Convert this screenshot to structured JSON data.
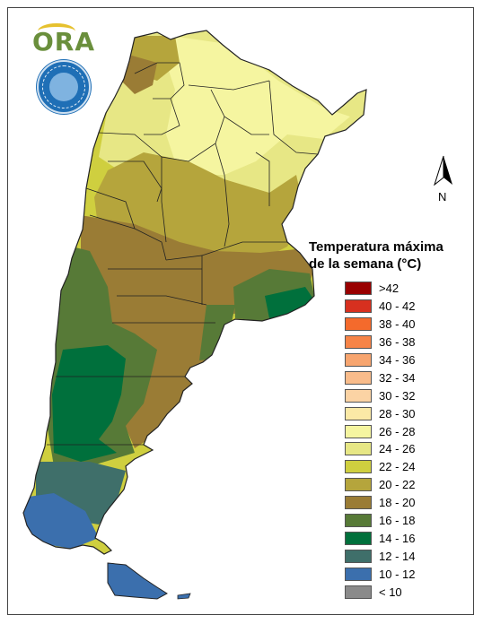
{
  "logo": {
    "text": "ORA"
  },
  "seal": {
    "name": "smn-seal"
  },
  "north_arrow": {
    "label": "N"
  },
  "legend": {
    "title_line1": "Temperatura máxima",
    "title_line2": "de la semana (°C)",
    "items": [
      {
        "label": ">42",
        "color": "#990000"
      },
      {
        "label": "40 - 42",
        "color": "#d7301f"
      },
      {
        "label": "38 - 40",
        "color": "#f46a2c"
      },
      {
        "label": "36 - 38",
        "color": "#f68447"
      },
      {
        "label": "34 - 36",
        "color": "#f7a56f"
      },
      {
        "label": "32 - 34",
        "color": "#f9bc8b"
      },
      {
        "label": "30 - 32",
        "color": "#fbd3a4"
      },
      {
        "label": "28 - 30",
        "color": "#fbe9a6"
      },
      {
        "label": "26 - 28",
        "color": "#f5f5a0"
      },
      {
        "label": "24 - 26",
        "color": "#e7e785"
      },
      {
        "label": "22 - 24",
        "color": "#cfcf3f"
      },
      {
        "label": "20 - 22",
        "color": "#b5a53c"
      },
      {
        "label": "18 - 20",
        "color": "#9a7c35"
      },
      {
        "label": "16 - 18",
        "color": "#577a37"
      },
      {
        "label": "14 - 16",
        "color": "#00703c"
      },
      {
        "label": "12 - 14",
        "color": "#3f6f6a"
      },
      {
        "label": "10 - 12",
        "color": "#3b6fad"
      },
      {
        "label": "< 10",
        "color": "#8a8a8a"
      }
    ]
  },
  "map_zones": [
    {
      "zone": "north-west-highlands",
      "range": "18 - 20"
    },
    {
      "zone": "north-puna",
      "range": "20 - 22"
    },
    {
      "zone": "north-central",
      "range": "26 - 28"
    },
    {
      "zone": "north-east",
      "range": "24 - 26"
    },
    {
      "zone": "central",
      "range": "20 - 22"
    },
    {
      "zone": "central-south",
      "range": "18 - 20"
    },
    {
      "zone": "patagonia-west",
      "range": "16 - 18"
    },
    {
      "zone": "patagonia-core",
      "range": "14 - 16"
    },
    {
      "zone": "buenos-aires-coast",
      "range": "14 - 16"
    },
    {
      "zone": "south",
      "range": "12 - 14"
    },
    {
      "zone": "far-south",
      "range": "10 - 12"
    }
  ]
}
